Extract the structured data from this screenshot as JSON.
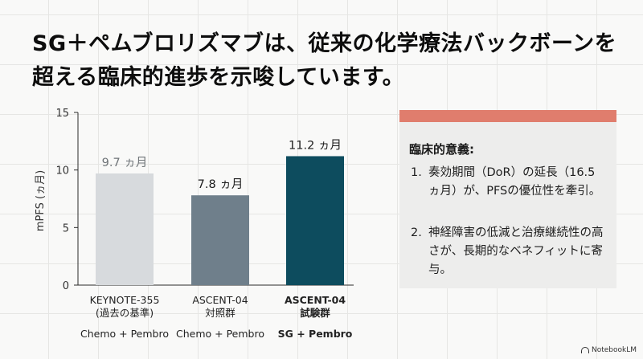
{
  "title": "SG＋ペムブロリズマブは、従来の化学療法バックボーンを超える臨床的進歩を示唆しています。",
  "chart_data": {
    "type": "bar",
    "ylabel": "mPFS (ヵ月)",
    "ylim": [
      0,
      15
    ],
    "yticks": [
      0,
      5,
      10,
      15
    ],
    "grid": false,
    "bars": [
      {
        "value": 9.7,
        "value_label": "9.7 ヵ月",
        "label_line1": "KEYNOTE-355",
        "label_line2": "(過去の基準)",
        "regimen": "Chemo + Pembro",
        "color": "#d7dadd",
        "value_color": "#6f7478",
        "bold": false
      },
      {
        "value": 7.8,
        "value_label": "7.8 ヵ月",
        "label_line1": "ASCENT-04",
        "label_line2": "対照群",
        "regimen": "Chemo + Pembro",
        "color": "#6f7f8b",
        "value_color": "#1c1c1c",
        "bold": false
      },
      {
        "value": 11.2,
        "value_label": "11.2 ヵ月",
        "label_line1": "ASCENT-04",
        "label_line2": "試験群",
        "regimen": "SG + Pembro",
        "color": "#0d4c5e",
        "value_color": "#1c1c1c",
        "bold": true
      }
    ]
  },
  "panel": {
    "accent_color": "#e07d6d",
    "heading": "臨床的意義:",
    "items": [
      {
        "num": "1.",
        "text": "奏効期間（DoR）の延長（16.5ヵ月）が、PFSの優位性を牽引。"
      },
      {
        "num": "2.",
        "text": "神経障害の低減と治療継続性の高さが、長期的なベネフィットに寄与。"
      }
    ]
  },
  "brand": "NotebookLM"
}
